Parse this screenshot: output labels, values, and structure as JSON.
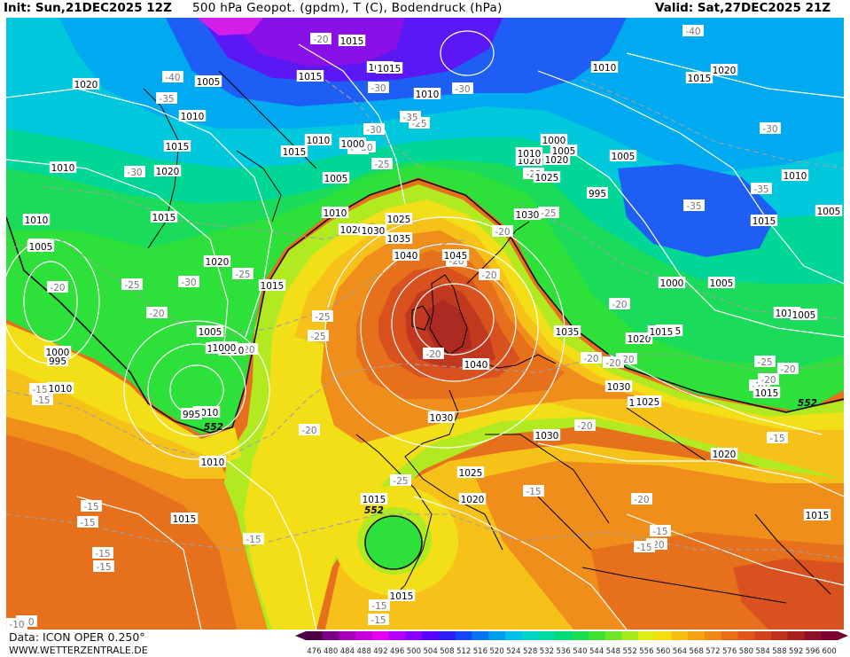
{
  "header": {
    "init": "Init: Sun,21DEC2025 12Z",
    "field": "500 hPa Geopot. (gpdm), T (C), Bodendruck (hPa)",
    "valid": "Valid: Sat,27DEC2025 21Z"
  },
  "footer": {
    "data_source": "Data: ICON OPER 0.250°",
    "website": "WWW.WETTERZENTRALE.DE"
  },
  "colorbar": {
    "ticks": [
      "476",
      "480",
      "484",
      "488",
      "492",
      "496",
      "500",
      "504",
      "508",
      "512",
      "516",
      "520",
      "524",
      "528",
      "532",
      "536",
      "540",
      "544",
      "548",
      "552",
      "556",
      "560",
      "564",
      "568",
      "572",
      "576",
      "580",
      "584",
      "588",
      "592",
      "596",
      "600"
    ],
    "colors": [
      "#4b0046",
      "#7a0088",
      "#a300b8",
      "#c800dc",
      "#e600f0",
      "#b400f5",
      "#8a00ff",
      "#5a00ff",
      "#2c1ef5",
      "#1446f5",
      "#0a73f0",
      "#00a0ec",
      "#00c0e6",
      "#00d2c4",
      "#00d9a0",
      "#00db78",
      "#1ade50",
      "#3ce232",
      "#6be628",
      "#a6ea1c",
      "#dcee14",
      "#f6de10",
      "#f6be12",
      "#f4a214",
      "#f08816",
      "#ea6e18",
      "#e2561a",
      "#d4421c",
      "#c0321e",
      "#a82020",
      "#900e28",
      "#7a0030"
    ]
  },
  "map": {
    "fill_colors": {
      "purple": "#8a10e8",
      "magenta": "#d21ee8",
      "violet": "#5a18f4",
      "blue": "#1e5ef4",
      "light_blue": "#00aaf0",
      "cyan": "#00c8dc",
      "teal_green": "#00d696",
      "green": "#1adc5a",
      "bright_green": "#2ee03a",
      "yellow_green": "#b2ea22",
      "yellow": "#f3df18",
      "gold": "#f6c21a",
      "orange": "#ef8e1a",
      "dark_orange": "#e6701c",
      "red_orange": "#d9511e",
      "red": "#c0391f",
      "dark_red": "#ad2a22"
    },
    "line_colors": {
      "isobar": "#ffffff",
      "isotherm": "#a0a0a0",
      "coast": "#000000",
      "height_552": "#111111"
    },
    "pressure_labels": [
      "1015",
      "1015",
      "1005",
      "1015",
      "1020",
      "1010",
      "1010",
      "1015",
      "1015",
      "1010",
      "1015",
      "1000",
      "1010",
      "995",
      "1005",
      "1015",
      "1020",
      "1005",
      "1025",
      "1010",
      "1020",
      "1030",
      "1035",
      "1040",
      "1045",
      "1040",
      "1035",
      "1030",
      "1030",
      "1025",
      "1025",
      "1020",
      "1020",
      "1015",
      "1030",
      "1020",
      "1000",
      "1005",
      "995",
      "1000",
      "1010",
      "1000",
      "1005",
      "1010",
      "1010",
      "1005",
      "1010",
      "1020",
      "1015",
      "1025",
      "1000",
      "1005",
      "1010",
      "995",
      "1000",
      "1010",
      "1015",
      "1010",
      "1015",
      "1015",
      "1020",
      "1025",
      "1030",
      "1015",
      "1020",
      "1015",
      "1015",
      "1020",
      "1015",
      "1005",
      "1015",
      "1005",
      "1000",
      "1010"
    ],
    "temp_labels": [
      "-20",
      "-40",
      "-40",
      "-35",
      "-35",
      "-30",
      "-30",
      "-30",
      "-25",
      "-30",
      "-25",
      "-25",
      "-25",
      "-30",
      "-20",
      "-20",
      "-25",
      "-20",
      "-20",
      "-20",
      "-20",
      "-25",
      "-20",
      "-20",
      "-15",
      "-15",
      "-15",
      "-15",
      "-20",
      "-15",
      "-10",
      "-15",
      "-35",
      "-30",
      "-35",
      "-30",
      "-25",
      "-20",
      "-20",
      "-20",
      "-30",
      "-25",
      "-25",
      "-25",
      "-20",
      "-20",
      "-20",
      "-15",
      "-15",
      "-25",
      "-20",
      "-20",
      "-15",
      "-15",
      "-15",
      "-10",
      "-15",
      "-15",
      "-20"
    ],
    "height_labels": [
      "552",
      "552",
      "552"
    ]
  }
}
